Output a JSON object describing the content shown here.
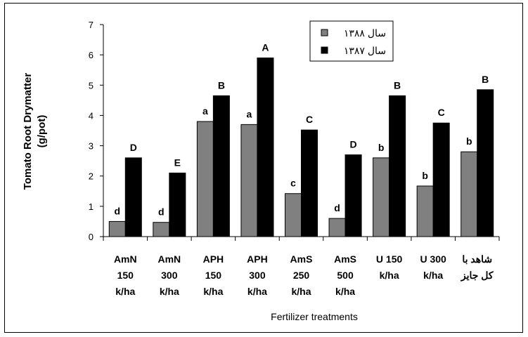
{
  "chart_data": {
    "type": "bar",
    "title": "",
    "ylabel": "Tomato Root Drymatter (g/pot)",
    "xlabel": "Fertilizer treatments",
    "ylim": [
      0,
      7
    ],
    "yticks": [
      0,
      1,
      2,
      3,
      4,
      5,
      6,
      7
    ],
    "grid": false,
    "legend_position": "top-right",
    "categories": [
      [
        "AmN",
        "150",
        "k/ha"
      ],
      [
        "AmN",
        "300",
        "k/ha"
      ],
      [
        "APH",
        "150",
        "k/ha"
      ],
      [
        "APH",
        "300",
        "k/ha"
      ],
      [
        "AmS",
        "250",
        "k/ha"
      ],
      [
        "AmS",
        "500",
        "k/ha"
      ],
      [
        "U 150",
        "k/ha"
      ],
      [
        "U 300",
        "k/ha"
      ],
      [
        "شاهد با",
        "کل جایز"
      ]
    ],
    "series": [
      {
        "name": "سال ۱۳۸۸",
        "color": "#808080",
        "values": [
          0.5,
          0.47,
          3.8,
          3.7,
          1.42,
          0.6,
          2.6,
          1.67,
          2.8
        ],
        "labels": [
          "d",
          "d",
          "a",
          "a",
          "c",
          "d",
          "b",
          "b",
          "b"
        ]
      },
      {
        "name": "سال ۱۳۸۷",
        "color": "#000000",
        "values": [
          2.6,
          2.1,
          4.65,
          5.9,
          3.52,
          2.7,
          4.65,
          3.75,
          4.85
        ],
        "labels": [
          "D",
          "E",
          "B",
          "A",
          "C",
          "D",
          "B",
          "C",
          "B"
        ]
      }
    ]
  }
}
